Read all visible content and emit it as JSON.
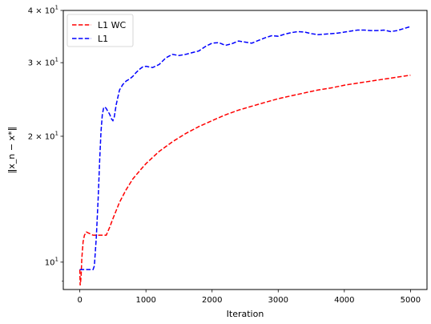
{
  "chart_data": {
    "type": "line",
    "xlabel": "Iteration",
    "ylabel": "‖x_n − x*‖",
    "xlim": [
      -250,
      5250
    ],
    "ylim": [
      8.6,
      40
    ],
    "yscale": "log",
    "grid": false,
    "legend_position": "top-left",
    "x_ticks": [
      0,
      1000,
      2000,
      3000,
      4000,
      5000
    ],
    "x_tick_labels": [
      "0",
      "1000",
      "2000",
      "3000",
      "4000",
      "5000"
    ],
    "y_major_ticks": [
      10,
      20,
      30,
      40
    ],
    "y_tick_labels": [
      {
        "value": 10,
        "base": "10",
        "exp": "1",
        "coef": ""
      },
      {
        "value": 20,
        "base": "10",
        "exp": "1",
        "coef": "2 × "
      },
      {
        "value": 30,
        "base": "10",
        "exp": "1",
        "coef": "3 × "
      },
      {
        "value": 40,
        "base": "10",
        "exp": "1",
        "coef": "4 × "
      }
    ],
    "y_minor_ticks": [
      9
    ],
    "series": [
      {
        "name": "L1 WC",
        "color": "#ff0000",
        "style": "dashed",
        "x": [
          0,
          5,
          10,
          20,
          30,
          50,
          70,
          100,
          150,
          200,
          250,
          300,
          350,
          400,
          450,
          500,
          600,
          700,
          800,
          900,
          1000,
          1200,
          1400,
          1600,
          1800,
          2000,
          2200,
          2400,
          2600,
          2800,
          3000,
          3200,
          3400,
          3600,
          3800,
          4000,
          4200,
          4400,
          4600,
          4800,
          5000
        ],
        "y": [
          9.6,
          8.8,
          8.9,
          9.3,
          10.2,
          11.2,
          11.6,
          11.8,
          11.7,
          11.6,
          11.6,
          11.6,
          11.6,
          11.6,
          12.1,
          12.7,
          13.9,
          14.9,
          15.8,
          16.5,
          17.2,
          18.4,
          19.4,
          20.3,
          21.1,
          21.8,
          22.5,
          23.1,
          23.6,
          24.1,
          24.6,
          25.0,
          25.4,
          25.8,
          26.1,
          26.5,
          26.8,
          27.1,
          27.4,
          27.7,
          28.0
        ]
      },
      {
        "name": "L1",
        "color": "#0000ff",
        "style": "dashed",
        "x": [
          0,
          20,
          50,
          100,
          150,
          200,
          220,
          250,
          280,
          300,
          320,
          340,
          360,
          380,
          400,
          420,
          450,
          480,
          500,
          520,
          550,
          600,
          650,
          700,
          750,
          800,
          850,
          900,
          950,
          1000,
          1100,
          1200,
          1300,
          1400,
          1500,
          1600,
          1700,
          1800,
          1900,
          2000,
          2100,
          2200,
          2300,
          2400,
          2500,
          2600,
          2700,
          2800,
          2900,
          3000,
          3100,
          3200,
          3300,
          3400,
          3500,
          3600,
          3700,
          3800,
          3900,
          4000,
          4100,
          4200,
          4300,
          4400,
          4500,
          4600,
          4700,
          4800,
          4900,
          5000
        ],
        "y": [
          9.6,
          9.6,
          9.6,
          9.6,
          9.6,
          9.6,
          9.8,
          11.5,
          14.5,
          17.5,
          20.5,
          22.5,
          23.4,
          23.5,
          23.3,
          23.0,
          22.6,
          22.0,
          21.8,
          22.2,
          23.8,
          25.8,
          26.6,
          27.1,
          27.4,
          27.8,
          28.4,
          28.9,
          29.3,
          29.4,
          29.2,
          29.7,
          30.8,
          31.4,
          31.2,
          31.4,
          31.7,
          32.0,
          32.8,
          33.4,
          33.5,
          33.0,
          33.3,
          33.8,
          33.6,
          33.4,
          33.9,
          34.4,
          34.8,
          34.7,
          35.1,
          35.4,
          35.6,
          35.5,
          35.2,
          35.0,
          35.1,
          35.2,
          35.3,
          35.5,
          35.7,
          35.9,
          35.9,
          35.8,
          35.8,
          35.9,
          35.6,
          35.8,
          36.2,
          36.6
        ]
      }
    ]
  }
}
